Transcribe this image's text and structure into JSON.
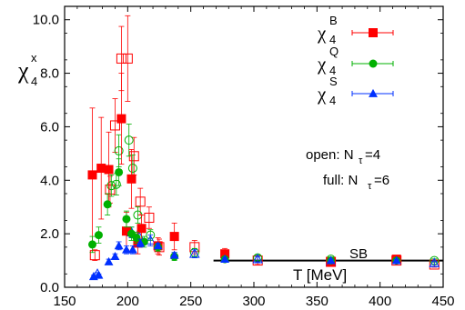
{
  "chart_data": {
    "type": "scatter",
    "xlim": [
      150,
      450
    ],
    "ylim": [
      0,
      10.5
    ],
    "xticks": [
      "150",
      "200",
      "250",
      "300",
      "350",
      "400",
      "450"
    ],
    "yticks": [
      "0.0",
      "2.0",
      "4.0",
      "6.0",
      "8.0",
      "10.0"
    ],
    "xlabel": "T [MeV]",
    "ylabel": {
      "base": "χ",
      "sub": "4",
      "sup": "x"
    },
    "legend_position": "top-right",
    "annotations": {
      "open": {
        "prefix": "open: N",
        "sub": "τ",
        "suffix": "=4"
      },
      "full": {
        "prefix": "full: N",
        "sub": "τ",
        "suffix": "=6"
      },
      "sb_label": "SB"
    },
    "sb_line": {
      "value": 1.0,
      "x_start": 268,
      "x_end": 450
    },
    "series": [
      {
        "key": "B",
        "legend": {
          "base": "χ",
          "sub": "4",
          "sup": "B"
        },
        "color": "#ff0000",
        "marker": "square",
        "full": [
          {
            "x": 172,
            "y": 4.2,
            "err": 2.5
          },
          {
            "x": 179,
            "y": 4.45,
            "err": 1.9
          },
          {
            "x": 185,
            "y": 4.4,
            "err": 1.4
          },
          {
            "x": 195,
            "y": 6.3,
            "err": 1.7
          },
          {
            "x": 199,
            "y": 2.1,
            "err": 0.7
          },
          {
            "x": 203,
            "y": 4.05,
            "err": 1.1
          },
          {
            "x": 208,
            "y": 1.65,
            "err": 0.4
          },
          {
            "x": 211,
            "y": 2.2,
            "err": 0.5
          },
          {
            "x": 224,
            "y": 1.55,
            "err": 0.3
          },
          {
            "x": 237,
            "y": 1.9,
            "err": 0.5
          },
          {
            "x": 277,
            "y": 1.25,
            "err": 0.2
          },
          {
            "x": 361,
            "y": 0.95,
            "err": 0.12
          },
          {
            "x": 413,
            "y": 1.05,
            "err": 0.06
          }
        ],
        "open": [
          {
            "x": 174,
            "y": 1.2,
            "err": 0.2
          },
          {
            "x": 186,
            "y": 3.65,
            "err": 0.5
          },
          {
            "x": 190,
            "y": 6.05,
            "err": 1.0
          },
          {
            "x": 195,
            "y": 8.55,
            "err": 1.2
          },
          {
            "x": 200,
            "y": 8.55,
            "err": 1.6
          },
          {
            "x": 205,
            "y": 4.9,
            "err": 0.7
          },
          {
            "x": 210,
            "y": 3.2,
            "err": 0.5
          },
          {
            "x": 217,
            "y": 2.6,
            "err": 0.4
          },
          {
            "x": 225,
            "y": 1.5,
            "err": 0.3
          },
          {
            "x": 253,
            "y": 1.5,
            "err": 0.25
          },
          {
            "x": 303,
            "y": 1.0,
            "err": 0.15
          },
          {
            "x": 361,
            "y": 0.95,
            "err": 0.1
          },
          {
            "x": 413,
            "y": 1.0,
            "err": 0.08
          },
          {
            "x": 443,
            "y": 0.85,
            "err": 0.1
          }
        ]
      },
      {
        "key": "Q",
        "legend": {
          "base": "χ",
          "sub": "4",
          "sup": "Q"
        },
        "color": "#00b000",
        "marker": "circle",
        "full": [
          {
            "x": 172,
            "y": 1.6,
            "err": 0.3
          },
          {
            "x": 177,
            "y": 1.95,
            "err": 0.3
          },
          {
            "x": 184,
            "y": 3.1,
            "err": 0.4
          },
          {
            "x": 193,
            "y": 4.3,
            "err": 0.5
          },
          {
            "x": 199,
            "y": 2.55,
            "err": 0.3
          },
          {
            "x": 203,
            "y": 2.0,
            "err": 0.25
          },
          {
            "x": 207,
            "y": 1.85,
            "err": 0.2
          },
          {
            "x": 213,
            "y": 1.7,
            "err": 0.2
          },
          {
            "x": 224,
            "y": 1.5,
            "err": 0.15
          },
          {
            "x": 237,
            "y": 1.15,
            "err": 0.15
          },
          {
            "x": 277,
            "y": 1.05,
            "err": 0.1
          },
          {
            "x": 361,
            "y": 1.0,
            "err": 0.05
          },
          {
            "x": 413,
            "y": 1.0,
            "err": 0.04
          }
        ],
        "open": [
          {
            "x": 187,
            "y": 3.8,
            "err": 0.4
          },
          {
            "x": 191,
            "y": 3.85,
            "err": 0.4
          },
          {
            "x": 193,
            "y": 5.1,
            "err": 0.6
          },
          {
            "x": 201,
            "y": 5.5,
            "err": 0.6
          },
          {
            "x": 204,
            "y": 4.45,
            "err": 0.5
          },
          {
            "x": 208,
            "y": 2.7,
            "err": 0.3
          },
          {
            "x": 218,
            "y": 1.95,
            "err": 0.2
          },
          {
            "x": 253,
            "y": 1.3,
            "err": 0.15
          },
          {
            "x": 303,
            "y": 1.1,
            "err": 0.1
          },
          {
            "x": 361,
            "y": 1.05,
            "err": 0.08
          },
          {
            "x": 443,
            "y": 1.0,
            "err": 0.06
          }
        ]
      },
      {
        "key": "S",
        "legend": {
          "base": "χ",
          "sub": "4",
          "sup": "S"
        },
        "color": "#0030ff",
        "marker": "triangle",
        "full": [
          {
            "x": 173,
            "y": 0.4,
            "err": 0.05
          },
          {
            "x": 177,
            "y": 0.45,
            "err": 0.05
          },
          {
            "x": 185,
            "y": 0.95,
            "err": 0.1
          },
          {
            "x": 190,
            "y": 1.15,
            "err": 0.1
          },
          {
            "x": 193,
            "y": 1.55,
            "err": 0.15
          },
          {
            "x": 199,
            "y": 1.4,
            "err": 0.15
          },
          {
            "x": 204,
            "y": 1.4,
            "err": 0.15
          },
          {
            "x": 210,
            "y": 1.65,
            "err": 0.15
          },
          {
            "x": 224,
            "y": 1.55,
            "err": 0.1
          },
          {
            "x": 237,
            "y": 1.2,
            "err": 0.1
          },
          {
            "x": 277,
            "y": 1.05,
            "err": 0.05
          },
          {
            "x": 361,
            "y": 1.0,
            "err": 0.05
          },
          {
            "x": 413,
            "y": 1.0,
            "err": 0.04
          }
        ],
        "open": [
          {
            "x": 176,
            "y": 0.5,
            "err": 0.05
          },
          {
            "x": 203,
            "y": 2.05,
            "err": 0.2
          },
          {
            "x": 209,
            "y": 1.9,
            "err": 0.2
          },
          {
            "x": 218,
            "y": 1.75,
            "err": 0.2
          },
          {
            "x": 253,
            "y": 1.25,
            "err": 0.15
          },
          {
            "x": 303,
            "y": 1.05,
            "err": 0.1
          },
          {
            "x": 361,
            "y": 0.95,
            "err": 0.08
          },
          {
            "x": 443,
            "y": 0.9,
            "err": 0.08
          }
        ]
      }
    ]
  }
}
